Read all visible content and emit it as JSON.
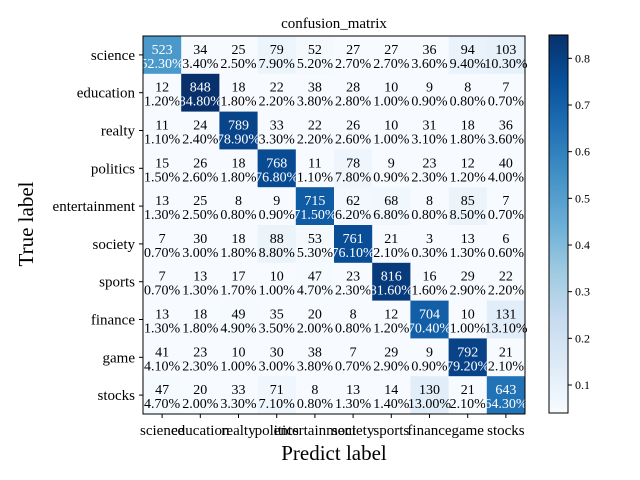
{
  "chart_data": {
    "type": "heatmap",
    "title": "confusion_matrix",
    "xlabel": "Predict label",
    "ylabel": "True label",
    "x_categories": [
      "science",
      "education",
      "realty",
      "politics",
      "entertainment",
      "society",
      "sports",
      "finance",
      "game",
      "stocks"
    ],
    "y_categories": [
      "science",
      "education",
      "realty",
      "politics",
      "entertainment",
      "society",
      "sports",
      "finance",
      "game",
      "stocks"
    ],
    "counts": [
      [
        523,
        34,
        25,
        79,
        52,
        27,
        27,
        36,
        94,
        103
      ],
      [
        12,
        848,
        18,
        22,
        38,
        28,
        10,
        9,
        8,
        7
      ],
      [
        11,
        24,
        789,
        33,
        22,
        26,
        10,
        31,
        18,
        36
      ],
      [
        15,
        26,
        18,
        768,
        11,
        78,
        9,
        23,
        12,
        40
      ],
      [
        13,
        25,
        8,
        9,
        715,
        62,
        68,
        8,
        85,
        7
      ],
      [
        7,
        30,
        18,
        88,
        53,
        761,
        21,
        3,
        13,
        6
      ],
      [
        7,
        13,
        17,
        10,
        47,
        23,
        816,
        16,
        29,
        22
      ],
      [
        13,
        18,
        49,
        35,
        20,
        8,
        12,
        704,
        10,
        131
      ],
      [
        41,
        23,
        10,
        30,
        38,
        7,
        29,
        9,
        792,
        21
      ],
      [
        47,
        20,
        33,
        71,
        8,
        13,
        14,
        130,
        21,
        643
      ]
    ],
    "percent_labels": [
      [
        "52.30%",
        "3.40%",
        "2.50%",
        "7.90%",
        "5.20%",
        "2.70%",
        "2.70%",
        "3.60%",
        "9.40%",
        "10.30%"
      ],
      [
        "1.20%",
        "84.80%",
        "1.80%",
        "2.20%",
        "3.80%",
        "2.80%",
        "1.00%",
        "0.90%",
        "0.80%",
        "0.70%"
      ],
      [
        "1.10%",
        "2.40%",
        "78.90%",
        "3.30%",
        "2.20%",
        "2.60%",
        "1.00%",
        "3.10%",
        "1.80%",
        "3.60%"
      ],
      [
        "1.50%",
        "2.60%",
        "1.80%",
        "76.80%",
        "1.10%",
        "7.80%",
        "0.90%",
        "2.30%",
        "1.20%",
        "4.00%"
      ],
      [
        "1.30%",
        "2.50%",
        "0.80%",
        "0.90%",
        "71.50%",
        "6.20%",
        "6.80%",
        "0.80%",
        "8.50%",
        "0.70%"
      ],
      [
        "0.70%",
        "3.00%",
        "1.80%",
        "8.80%",
        "5.30%",
        "76.10%",
        "2.10%",
        "0.30%",
        "1.30%",
        "0.60%"
      ],
      [
        "0.70%",
        "1.30%",
        "1.70%",
        "1.00%",
        "4.70%",
        "2.30%",
        "81.60%",
        "1.60%",
        "2.90%",
        "2.20%"
      ],
      [
        "1.30%",
        "1.80%",
        "4.90%",
        "3.50%",
        "2.00%",
        "0.80%",
        "1.20%",
        "70.40%",
        "1.00%",
        "13.10%"
      ],
      [
        "4.10%",
        "2.30%",
        "1.00%",
        "3.00%",
        "3.80%",
        "0.70%",
        "2.90%",
        "0.90%",
        "79.20%",
        "2.10%"
      ],
      [
        "4.70%",
        "2.00%",
        "3.30%",
        "7.10%",
        "0.80%",
        "1.30%",
        "1.40%",
        "13.00%",
        "2.10%",
        "64.30%"
      ]
    ],
    "colormap": "Blues",
    "colorbar": {
      "min": 0.04,
      "max": 0.85,
      "ticks": [
        0.1,
        0.2,
        0.3,
        0.4,
        0.5,
        0.6,
        0.7,
        0.8
      ],
      "tick_labels": [
        "0.1",
        "0.2",
        "0.3",
        "0.4",
        "0.5",
        "0.6",
        "0.7",
        "0.8"
      ]
    }
  }
}
